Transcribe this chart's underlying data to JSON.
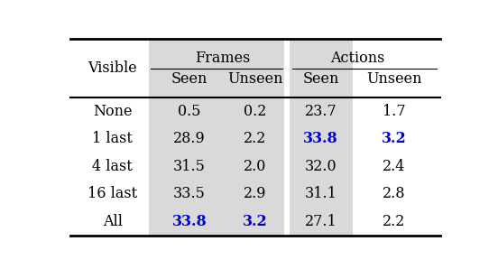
{
  "rows": [
    "None",
    "1 last",
    "4 last",
    "16 last",
    "All"
  ],
  "row_header": "Visible",
  "data": [
    [
      "0.5",
      "0.2",
      "23.7",
      "1.7"
    ],
    [
      "28.9",
      "2.2",
      "33.8",
      "3.2"
    ],
    [
      "31.5",
      "2.0",
      "32.0",
      "2.4"
    ],
    [
      "33.5",
      "2.9",
      "31.1",
      "2.8"
    ],
    [
      "33.8",
      "3.2",
      "27.1",
      "2.2"
    ]
  ],
  "bold_blue": [
    [
      false,
      false,
      false,
      false
    ],
    [
      false,
      false,
      true,
      true
    ],
    [
      false,
      false,
      false,
      false
    ],
    [
      false,
      false,
      false,
      false
    ],
    [
      true,
      true,
      false,
      false
    ]
  ],
  "shade_color": "#d9d9d9",
  "bg_color": "#ffffff",
  "font_size": 11.5
}
